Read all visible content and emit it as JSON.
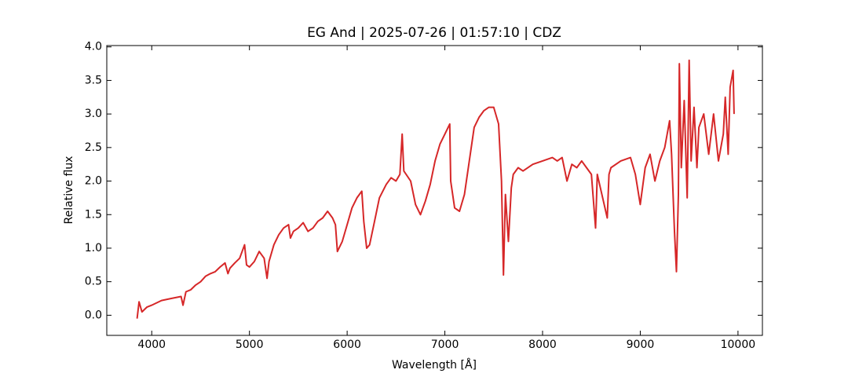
{
  "chart_data": {
    "type": "line",
    "title": "EG And | 2025-07-26 | 01:57:10 | CDZ",
    "xlabel": "Wavelength [Å]",
    "ylabel": "Relative flux",
    "color": "#d62728",
    "x": [
      3850,
      3870,
      3900,
      3950,
      4000,
      4100,
      4200,
      4300,
      4320,
      4350,
      4400,
      4450,
      4500,
      4550,
      4600,
      4650,
      4700,
      4750,
      4780,
      4800,
      4850,
      4900,
      4950,
      4970,
      5000,
      5050,
      5100,
      5150,
      5180,
      5200,
      5250,
      5300,
      5350,
      5400,
      5420,
      5450,
      5500,
      5550,
      5600,
      5650,
      5700,
      5750,
      5800,
      5850,
      5880,
      5900,
      5950,
      6000,
      6050,
      6100,
      6150,
      6170,
      6200,
      6230,
      6280,
      6330,
      6400,
      6450,
      6500,
      6540,
      6563,
      6580,
      6650,
      6700,
      6750,
      6800,
      6850,
      6900,
      6950,
      7000,
      7050,
      7060,
      7100,
      7150,
      7200,
      7250,
      7300,
      7350,
      7400,
      7450,
      7500,
      7550,
      7580,
      7600,
      7620,
      7650,
      7680,
      7700,
      7750,
      7800,
      7900,
      8000,
      8100,
      8150,
      8200,
      8250,
      8300,
      8350,
      8400,
      8450,
      8500,
      8542,
      8560,
      8662,
      8680,
      8700,
      8800,
      8900,
      8950,
      9000,
      9050,
      9100,
      9150,
      9200,
      9250,
      9300,
      9320,
      9350,
      9370,
      9390,
      9400,
      9420,
      9450,
      9480,
      9500,
      9520,
      9550,
      9580,
      9600,
      9650,
      9700,
      9750,
      9800,
      9850,
      9870,
      9900,
      9920,
      9950,
      9960
    ],
    "values": [
      -0.05,
      0.2,
      0.05,
      0.12,
      0.15,
      0.22,
      0.25,
      0.28,
      0.15,
      0.35,
      0.38,
      0.45,
      0.5,
      0.58,
      0.62,
      0.65,
      0.72,
      0.78,
      0.62,
      0.7,
      0.78,
      0.85,
      1.05,
      0.75,
      0.72,
      0.8,
      0.95,
      0.85,
      0.55,
      0.8,
      1.05,
      1.2,
      1.3,
      1.35,
      1.15,
      1.25,
      1.3,
      1.38,
      1.25,
      1.3,
      1.4,
      1.45,
      1.55,
      1.45,
      1.35,
      0.95,
      1.1,
      1.35,
      1.6,
      1.75,
      1.85,
      1.4,
      1.0,
      1.05,
      1.4,
      1.75,
      1.95,
      2.05,
      2.0,
      2.1,
      2.7,
      2.15,
      2.0,
      1.65,
      1.5,
      1.7,
      1.95,
      2.3,
      2.55,
      2.7,
      2.85,
      2.0,
      1.6,
      1.55,
      1.8,
      2.3,
      2.8,
      2.95,
      3.05,
      3.1,
      3.1,
      2.85,
      2.0,
      0.6,
      1.8,
      1.1,
      1.9,
      2.1,
      2.2,
      2.15,
      2.25,
      2.3,
      2.35,
      2.3,
      2.35,
      2.0,
      2.25,
      2.2,
      2.3,
      2.2,
      2.1,
      1.3,
      2.1,
      1.45,
      2.1,
      2.2,
      2.3,
      2.35,
      2.1,
      1.65,
      2.2,
      2.4,
      2.0,
      2.3,
      2.5,
      2.9,
      2.4,
      1.25,
      0.65,
      1.8,
      3.75,
      2.2,
      3.2,
      1.75,
      3.8,
      2.3,
      3.1,
      2.2,
      2.8,
      3.0,
      2.4,
      3.0,
      2.3,
      2.7,
      3.25,
      2.4,
      3.4,
      3.65,
      3.0
    ],
    "xlim": [
      3540,
      10250
    ],
    "ylim": [
      -0.3,
      4.02
    ],
    "xticks": [
      4000,
      5000,
      6000,
      7000,
      8000,
      9000,
      10000
    ],
    "yticks": [
      {
        "value": 0,
        "label": "0.0"
      },
      0.5,
      {
        "value": 1,
        "label": "1.0"
      },
      1.5,
      {
        "value": 2,
        "label": "2.0"
      },
      2.5,
      {
        "value": 3,
        "label": "3.0"
      },
      3.5,
      {
        "value": 4,
        "label": "4.0"
      }
    ]
  }
}
